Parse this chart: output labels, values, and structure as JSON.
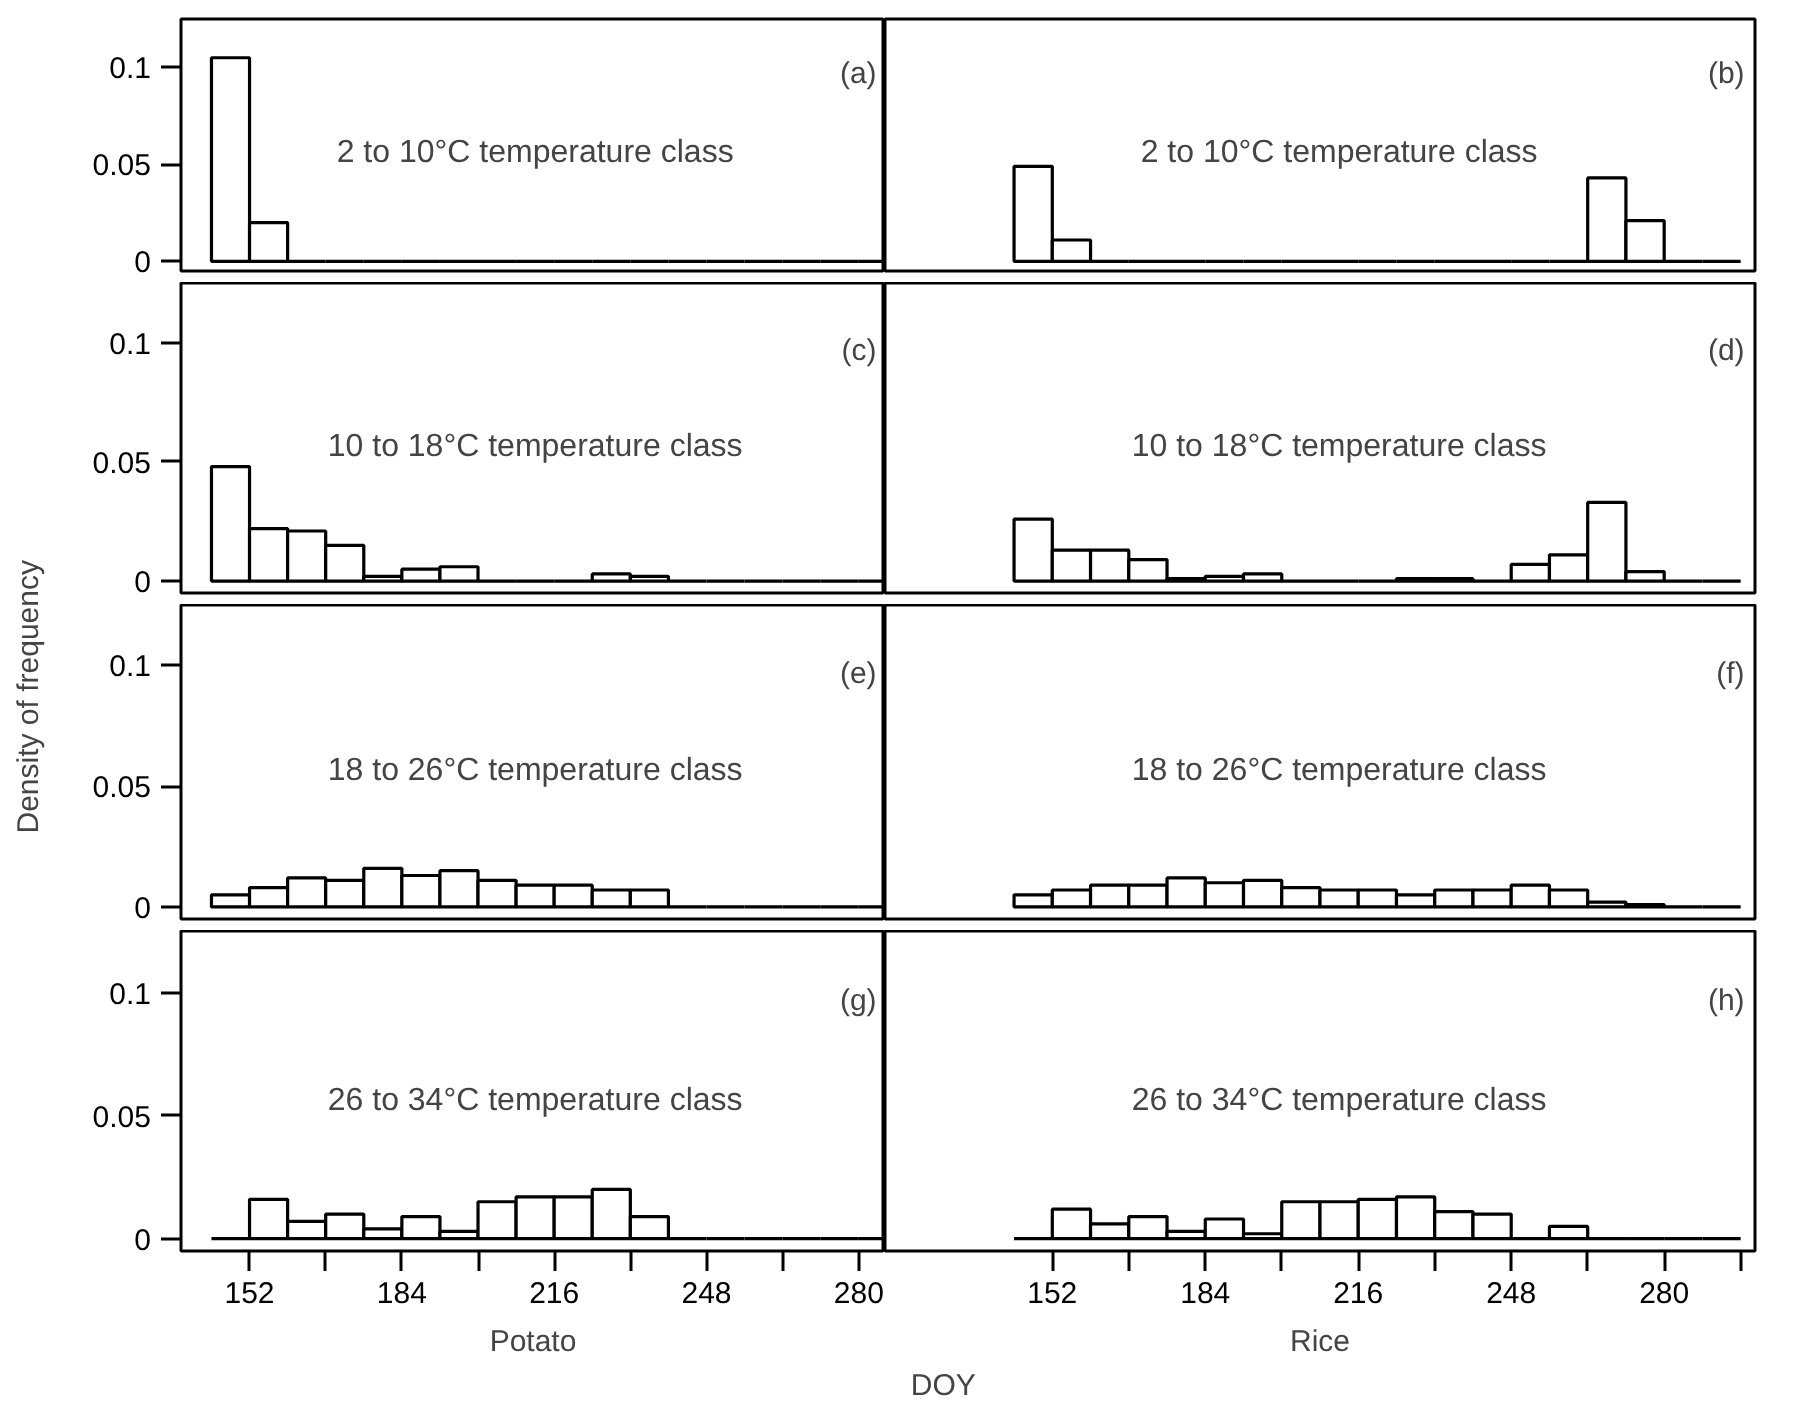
{
  "chart_data": [
    {
      "type": "histogram",
      "title": "2 to 10°C temperature class",
      "annotations": [
        "(a)"
      ],
      "bins": [
        144,
        152,
        160,
        168,
        176,
        184,
        192,
        200,
        208,
        216,
        224,
        232,
        240,
        248,
        256,
        264,
        272,
        280,
        288,
        296
      ],
      "values": [
        0.105,
        0.02,
        0,
        0,
        0,
        0,
        0,
        0,
        0,
        0,
        0,
        0,
        0,
        0,
        0,
        0,
        0,
        0,
        0
      ],
      "color": "#000000",
      "xlim": [
        137.6,
        285.5
      ],
      "ylim": [
        -0.005,
        0.125
      ],
      "yticks": [
        0,
        0.05,
        0.1
      ],
      "tick_labels": "y"
    },
    {
      "type": "histogram",
      "title": "2 to 10°C temperature class",
      "annotations": [
        "(b)"
      ],
      "bins": [
        144,
        152,
        160,
        168,
        176,
        184,
        192,
        200,
        208,
        216,
        224,
        232,
        240,
        248,
        256,
        264,
        272,
        280,
        288,
        296
      ],
      "values": [
        0.049,
        0.011,
        0,
        0,
        0,
        0,
        0,
        0,
        0,
        0,
        0,
        0,
        0,
        0,
        0,
        0.043,
        0.021,
        0,
        0
      ],
      "color": "#000000",
      "xlim": [
        117,
        299
      ],
      "ylim": [
        -0.005,
        0.125
      ],
      "tick_labels": false
    },
    {
      "type": "histogram",
      "title": "10 to 18°C temperature class",
      "annotations": [
        "(c)"
      ],
      "bins": [
        144,
        152,
        160,
        168,
        176,
        184,
        192,
        200,
        208,
        216,
        224,
        232,
        240,
        248,
        256,
        264,
        272,
        280,
        288,
        296
      ],
      "values": [
        0.048,
        0.022,
        0.021,
        0.015,
        0.002,
        0.005,
        0.006,
        0,
        0,
        0,
        0.003,
        0.002,
        0,
        0,
        0,
        0,
        0,
        0,
        0
      ],
      "color": "#000000",
      "xlim": [
        137.6,
        285.5
      ],
      "ylim": [
        -0.005,
        0.125
      ],
      "yticks": [
        0,
        0.05,
        0.1
      ],
      "tick_labels": "y"
    },
    {
      "type": "histogram",
      "title": "10 to 18°C temperature class",
      "annotations": [
        "(d)"
      ],
      "bins": [
        144,
        152,
        160,
        168,
        176,
        184,
        192,
        200,
        208,
        216,
        224,
        232,
        240,
        248,
        256,
        264,
        272,
        280,
        288,
        296
      ],
      "values": [
        0.026,
        0.013,
        0.013,
        0.009,
        0.001,
        0.002,
        0.003,
        0,
        0,
        0,
        0.001,
        0.001,
        0,
        0.007,
        0.011,
        0.033,
        0.004,
        0,
        0
      ],
      "color": "#000000",
      "xlim": [
        117,
        299
      ],
      "ylim": [
        -0.005,
        0.125
      ],
      "tick_labels": false
    },
    {
      "type": "histogram",
      "title": "18 to 26°C temperature class",
      "ylabel": "Density of frequency",
      "annotations": [
        "(e)"
      ],
      "bins": [
        144,
        152,
        160,
        168,
        176,
        184,
        192,
        200,
        208,
        216,
        224,
        232,
        240,
        248,
        256,
        264,
        272,
        280,
        288,
        296
      ],
      "values": [
        0.005,
        0.008,
        0.012,
        0.011,
        0.016,
        0.013,
        0.015,
        0.011,
        0.009,
        0.009,
        0.007,
        0.007,
        0,
        0,
        0,
        0,
        0,
        0,
        0
      ],
      "color": "#000000",
      "xlim": [
        137.6,
        285.5
      ],
      "ylim": [
        -0.005,
        0.125
      ],
      "yticks": [
        0,
        0.05,
        0.1
      ],
      "tick_labels": "y"
    },
    {
      "type": "histogram",
      "title": "18 to 26°C temperature class",
      "annotations": [
        "(f)"
      ],
      "bins": [
        144,
        152,
        160,
        168,
        176,
        184,
        192,
        200,
        208,
        216,
        224,
        232,
        240,
        248,
        256,
        264,
        272,
        280,
        288,
        296
      ],
      "values": [
        0.005,
        0.007,
        0.009,
        0.009,
        0.012,
        0.01,
        0.011,
        0.008,
        0.007,
        0.007,
        0.005,
        0.007,
        0.007,
        0.009,
        0.007,
        0.002,
        0.001,
        0,
        0
      ],
      "color": "#000000",
      "xlim": [
        117,
        299
      ],
      "ylim": [
        -0.005,
        0.125
      ],
      "tick_labels": false
    },
    {
      "type": "histogram",
      "title": "26 to 34°C temperature class",
      "xlabel": "Potato",
      "annotations": [
        "(g)"
      ],
      "bins": [
        144,
        152,
        160,
        168,
        176,
        184,
        192,
        200,
        208,
        216,
        224,
        232,
        240,
        248,
        256,
        264,
        272,
        280,
        288,
        296
      ],
      "values": [
        0,
        0.016,
        0.007,
        0.01,
        0.004,
        0.009,
        0.003,
        0.015,
        0.017,
        0.017,
        0.02,
        0.009,
        0,
        0,
        0,
        0,
        0,
        0,
        0
      ],
      "color": "#000000",
      "xlim": [
        137.6,
        285.5
      ],
      "ylim": [
        -0.005,
        0.125
      ],
      "yticks": [
        0,
        0.05,
        0.1
      ],
      "xticks": [
        152,
        {
          "value": 168,
          "label": null
        },
        184,
        {
          "value": 200,
          "label": null
        },
        216,
        {
          "value": 232,
          "label": null
        },
        248,
        {
          "value": 264,
          "label": null
        },
        280
      ]
    },
    {
      "type": "histogram",
      "title": "26 to 34°C temperature class",
      "xlabel": "Rice",
      "annotations": [
        "(h)",
        "DOY"
      ],
      "bins": [
        144,
        152,
        160,
        168,
        176,
        184,
        192,
        200,
        208,
        216,
        224,
        232,
        240,
        248,
        256,
        264,
        272,
        280,
        288,
        296
      ],
      "values": [
        0,
        0.012,
        0.006,
        0.009,
        0.003,
        0.008,
        0.002,
        0.015,
        0.015,
        0.016,
        0.017,
        0.011,
        0.01,
        0,
        0.005,
        0,
        0,
        0,
        0
      ],
      "color": "#000000",
      "xlim": [
        117,
        299
      ],
      "ylim": [
        -0.005,
        0.125
      ],
      "yticks": [
        0,
        0.05,
        0.1
      ],
      "xticks": [
        152,
        {
          "value": 168,
          "label": null
        },
        184,
        {
          "value": 200,
          "label": null
        },
        216,
        {
          "value": 232,
          "label": null
        },
        248,
        {
          "value": 264,
          "label": null
        },
        280,
        {
          "value": 296,
          "label": null
        }
      ],
      "tick_labels": "x"
    }
  ]
}
